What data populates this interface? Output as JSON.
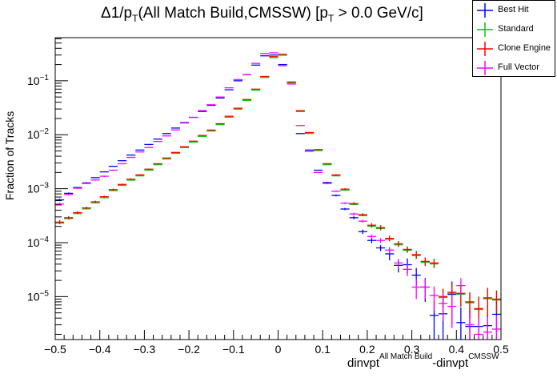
{
  "chart_data": {
    "type": "scatter",
    "title": "Δ1/pT(All Match Build,CMSSW) [pT > 0.0 GeV/c]",
    "title_parts": {
      "delta": "Δ1/p",
      "sub1": "T",
      "mid": "(All Match Build,CMSSW) [p",
      "sub2": "T",
      "end": " > 0.0 GeV/c]"
    },
    "xlabel": "dinvpt^{All Match Build}-dinvpt^{CMSSW}",
    "xlabel_parts": {
      "a": "dinvpt",
      "a_sup": "All Match Build",
      "b": "-dinvpt",
      "b_sup": "CMSSW"
    },
    "ylabel": "Fraction of Tracks",
    "xlim": [
      -0.5,
      0.5
    ],
    "ylim": [
      1.6e-06,
      0.63
    ],
    "yscale": "log",
    "grid": false,
    "legend_position": "top-right",
    "x_ticks": [
      "-0.5",
      "-0.4",
      "-0.3",
      "-0.2",
      "-0.1",
      "0",
      "0.1",
      "0.2",
      "0.3",
      "0.4",
      "0.5"
    ],
    "x_tick_values": [
      -0.5,
      -0.4,
      -0.3,
      -0.2,
      -0.1,
      0,
      0.1,
      0.2,
      0.3,
      0.4,
      0.5
    ],
    "y_ticks": [
      {
        "value": 0.1,
        "base": "10",
        "exp": "−1"
      },
      {
        "value": 0.01,
        "base": "10",
        "exp": "−2"
      },
      {
        "value": 0.001,
        "base": "10",
        "exp": "−3"
      },
      {
        "value": 0.0001,
        "base": "10",
        "exp": "−4"
      },
      {
        "value": 1e-05,
        "base": "10",
        "exp": "−5"
      }
    ],
    "bin_width": 0.02,
    "x": [
      -0.49,
      -0.47,
      -0.45,
      -0.43,
      -0.41,
      -0.39,
      -0.37,
      -0.35,
      -0.33,
      -0.31,
      -0.29,
      -0.27,
      -0.25,
      -0.23,
      -0.21,
      -0.19,
      -0.17,
      -0.15,
      -0.13,
      -0.11,
      -0.09,
      -0.07,
      -0.05,
      -0.03,
      -0.01,
      0.01,
      0.03,
      0.05,
      0.07,
      0.09,
      0.11,
      0.13,
      0.15,
      0.17,
      0.19,
      0.21,
      0.23,
      0.25,
      0.27,
      0.29,
      0.31,
      0.33,
      0.35,
      0.37,
      0.39,
      0.41,
      0.43,
      0.45,
      0.47,
      0.49
    ],
    "series": [
      {
        "name": "Best Hit",
        "color": "#0000ff",
        "values": [
          0.00062,
          0.00082,
          0.00105,
          0.00128,
          0.0016,
          0.00205,
          0.0026,
          0.0033,
          0.0042,
          0.0052,
          0.0066,
          0.0083,
          0.0105,
          0.0133,
          0.0168,
          0.021,
          0.027,
          0.035,
          0.048,
          0.068,
          0.1,
          0.13,
          0.195,
          0.29,
          0.3,
          0.2,
          0.092,
          0.0105,
          0.0052,
          0.0022,
          0.0013,
          0.00075,
          0.00042,
          0.00029,
          0.00016,
          0.00011,
          8e-05,
          6.2e-05,
          3.8e-05,
          3.9e-05,
          2.5e-05,
          1.5e-05,
          4.5e-06,
          4.8e-06,
          1.1e-05,
          3.3e-06,
          2.8e-06,
          2.8e-06,
          2.9e-06,
          4.7e-06
        ],
        "errors": [
          3e-05,
          3e-05,
          3e-05,
          4e-05,
          4e-05,
          5e-05,
          5e-05,
          6e-05,
          6e-05,
          7e-05,
          8e-05,
          9e-05,
          0.0001,
          0.00011,
          0.00012,
          0.00014,
          0.00016,
          0.00018,
          0.0002,
          0.00025,
          0.0003,
          0.0003,
          0.0004,
          0.0005,
          0.0005,
          0.0004,
          0.0003,
          0.0001,
          7e-05,
          5e-05,
          4e-05,
          3e-05,
          2e-05,
          2e-05,
          1.5e-05,
          1.2e-05,
          1e-05,
          1.5e-05,
          1e-05,
          1.2e-05,
          9e-06,
          7e-06,
          4e-06,
          4e-06,
          8e-06,
          3e-06,
          3e-06,
          3e-06,
          3e-06,
          4e-06
        ]
      },
      {
        "name": "Standard",
        "color": "#00cc00",
        "values": [
          0.00024,
          0.00029,
          0.00036,
          0.00044,
          0.00057,
          0.00071,
          0.00096,
          0.0012,
          0.0015,
          0.0018,
          0.0023,
          0.0029,
          0.0037,
          0.0047,
          0.006,
          0.0076,
          0.0097,
          0.0122,
          0.016,
          0.022,
          0.031,
          0.045,
          0.07,
          0.12,
          0.28,
          0.31,
          0.095,
          0.028,
          0.011,
          0.0053,
          0.0029,
          0.0018,
          0.00098,
          0.00053,
          0.00033,
          0.00021,
          0.00019,
          0.00012,
          9.5e-05,
          7.5e-05,
          6e-05,
          4.5e-05,
          4.2e-05,
          1e-05,
          1.2e-05,
          1.15e-05,
          8e-06,
          6e-06,
          9.5e-06,
          9e-06
        ],
        "errors": [
          2e-05,
          2e-05,
          2e-05,
          2e-05,
          3e-05,
          3e-05,
          4e-05,
          4e-05,
          5e-05,
          5e-05,
          6e-05,
          7e-05,
          8e-05,
          9e-05,
          0.0001,
          0.00011,
          0.00013,
          0.00014,
          0.00016,
          0.0002,
          0.00024,
          0.0003,
          0.0004,
          0.0005,
          0.0008,
          0.0008,
          0.0004,
          0.0002,
          0.00013,
          9e-05,
          7e-05,
          5e-05,
          4e-05,
          3e-05,
          2e-05,
          2e-05,
          2e-05,
          1.4e-05,
          1.2e-05,
          1e-05,
          1e-05,
          8e-06,
          8e-06,
          4e-06,
          5e-06,
          5e-06,
          4e-06,
          4e-06,
          5e-06,
          4e-06
        ]
      },
      {
        "name": "Clone Engine",
        "color": "#ff0000",
        "values": [
          0.00024,
          0.00029,
          0.00036,
          0.00044,
          0.00057,
          0.00071,
          0.00096,
          0.0012,
          0.0015,
          0.0018,
          0.0023,
          0.0029,
          0.0037,
          0.0047,
          0.006,
          0.0076,
          0.0097,
          0.0122,
          0.016,
          0.022,
          0.031,
          0.045,
          0.07,
          0.12,
          0.28,
          0.31,
          0.095,
          0.028,
          0.011,
          0.0053,
          0.0029,
          0.0018,
          0.00098,
          0.00053,
          0.00033,
          0.00021,
          0.00019,
          0.00012,
          9.5e-05,
          7.5e-05,
          6e-05,
          4.5e-05,
          4.2e-05,
          1e-05,
          1.2e-05,
          1.15e-05,
          8e-06,
          6e-06,
          9.5e-06,
          9e-06
        ],
        "errors": [
          2e-05,
          2e-05,
          2e-05,
          2e-05,
          3e-05,
          3e-05,
          4e-05,
          4e-05,
          5e-05,
          5e-05,
          6e-05,
          7e-05,
          8e-05,
          9e-05,
          0.0001,
          0.00011,
          0.00013,
          0.00014,
          0.00016,
          0.0002,
          0.00024,
          0.0003,
          0.0004,
          0.0005,
          0.0008,
          0.0008,
          0.0004,
          0.0002,
          0.00013,
          9e-05,
          7e-05,
          5e-05,
          4e-05,
          3e-05,
          2e-05,
          2e-05,
          2e-05,
          1.4e-05,
          1.2e-05,
          1e-05,
          1e-05,
          8e-06,
          8e-06,
          4e-06,
          5e-06,
          5e-06,
          4e-06,
          4e-06,
          5e-06,
          4e-06
        ]
      },
      {
        "name": "Full Vector",
        "color": "#ff00ff",
        "values": [
          0.00052,
          0.00078,
          0.00102,
          0.00125,
          0.00145,
          0.0017,
          0.0022,
          0.0029,
          0.0038,
          0.0048,
          0.0058,
          0.0075,
          0.0095,
          0.0123,
          0.0165,
          0.021,
          0.028,
          0.036,
          0.05,
          0.074,
          0.105,
          0.13,
          0.21,
          0.32,
          0.33,
          0.19,
          0.087,
          0.0148,
          0.0049,
          0.002,
          0.00125,
          0.0009,
          0.00054,
          0.00034,
          0.00025,
          0.00013,
          0.00011,
          7.3e-05,
          4.2e-05,
          3.2e-05,
          1.5e-05,
          1.5e-05,
          1.05e-05,
          7.5e-06,
          6.6e-06,
          1.6e-05,
          3e-06,
          2e-06,
          2.2e-06,
          2.5e-06
        ],
        "errors": [
          3e-05,
          3e-05,
          3e-05,
          4e-05,
          4e-05,
          5e-05,
          5e-05,
          6e-05,
          6e-05,
          7e-05,
          8e-05,
          9e-05,
          0.0001,
          0.00011,
          0.00012,
          0.00014,
          0.00016,
          0.00018,
          0.0002,
          0.00025,
          0.0003,
          0.0003,
          0.0004,
          0.0005,
          0.0005,
          0.0004,
          0.0003,
          0.00012,
          7e-05,
          5e-05,
          4e-05,
          3e-05,
          2e-05,
          2e-05,
          1.5e-05,
          1.2e-05,
          1.2e-05,
          1e-05,
          8e-06,
          8e-06,
          6e-06,
          6e-06,
          5e-06,
          4e-06,
          4e-06,
          6e-06,
          2e-06,
          2e-06,
          2e-06,
          2e-06
        ]
      }
    ]
  },
  "legend": {
    "items": [
      {
        "label": "Best Hit",
        "color": "#0000ff"
      },
      {
        "label": "Standard",
        "color": "#00cc00"
      },
      {
        "label": "Clone Engine",
        "color": "#ff0000"
      },
      {
        "label": "Full Vector",
        "color": "#ff00ff"
      }
    ]
  }
}
